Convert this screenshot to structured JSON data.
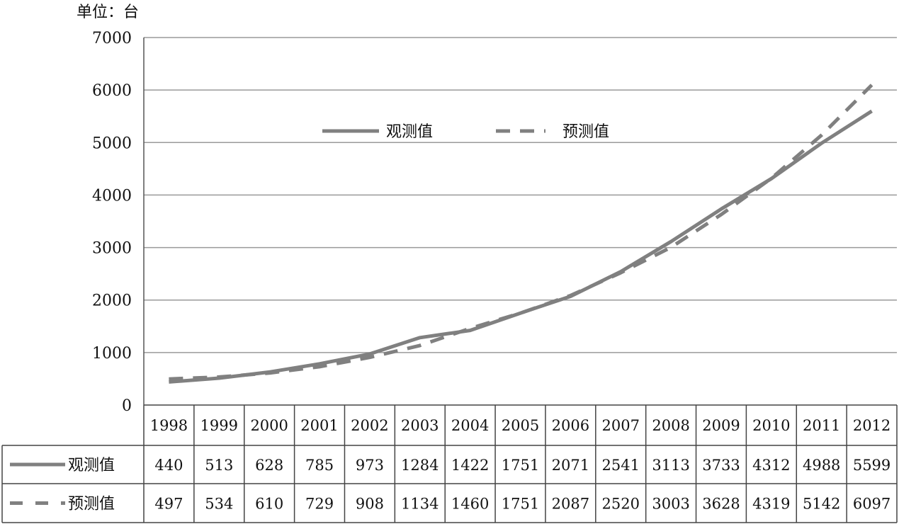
{
  "chart_data": {
    "type": "line",
    "unit_label": "单位：台",
    "categories": [
      "1998",
      "1999",
      "2000",
      "2001",
      "2002",
      "2003",
      "2004",
      "2005",
      "2006",
      "2007",
      "2008",
      "2009",
      "2010",
      "2011",
      "2012"
    ],
    "series": [
      {
        "name": "观测值",
        "style": "solid",
        "color": "#808080",
        "values": [
          440,
          513,
          628,
          785,
          973,
          1284,
          1422,
          1751,
          2071,
          2541,
          3113,
          3733,
          4312,
          4988,
          5599
        ]
      },
      {
        "name": "预测值",
        "style": "dashed",
        "color": "#808080",
        "values": [
          497,
          534,
          610,
          729,
          908,
          1134,
          1460,
          1751,
          2087,
          2520,
          3003,
          3628,
          4319,
          5142,
          6097
        ]
      }
    ],
    "ylim": [
      0,
      7000
    ],
    "yticks": [
      "0",
      "1000",
      "2000",
      "3000",
      "4000",
      "5000",
      "6000",
      "7000"
    ],
    "grid": true,
    "legend_position": "top-center",
    "data_table": true
  }
}
